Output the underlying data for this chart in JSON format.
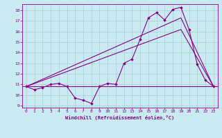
{
  "background_color": "#c8eaf0",
  "grid_color": "#b0d0d8",
  "line_color": "#880088",
  "marker_color": "#880088",
  "xlabel": "Windchill (Refroidissement éolien,°C)",
  "xlabel_color": "#880088",
  "tick_color": "#880088",
  "spine_color": "#880088",
  "xlim": [
    -0.5,
    23.5
  ],
  "ylim": [
    8.8,
    18.6
  ],
  "yticks": [
    9,
    10,
    11,
    12,
    13,
    14,
    15,
    16,
    17,
    18
  ],
  "xticks": [
    0,
    1,
    2,
    3,
    4,
    5,
    6,
    7,
    8,
    9,
    10,
    11,
    12,
    13,
    14,
    15,
    16,
    17,
    18,
    19,
    20,
    21,
    22,
    23
  ],
  "line1_x": [
    0,
    1,
    2,
    3,
    4,
    5,
    6,
    7,
    8,
    9,
    10,
    11,
    12,
    13,
    14,
    15,
    16,
    17,
    18,
    19,
    20,
    21,
    22,
    23
  ],
  "line1_y": [
    10.8,
    10.5,
    10.7,
    11.0,
    11.1,
    10.8,
    9.7,
    9.5,
    9.2,
    10.8,
    11.1,
    11.0,
    13.0,
    13.4,
    15.3,
    17.3,
    17.8,
    17.1,
    18.1,
    18.3,
    16.2,
    12.9,
    11.4,
    10.8
  ],
  "line2_x": [
    0,
    19,
    23
  ],
  "line2_y": [
    10.8,
    17.3,
    10.8
  ],
  "line3_x": [
    0,
    19,
    23
  ],
  "line3_y": [
    10.8,
    16.2,
    10.8
  ],
  "hline_y": 10.8
}
